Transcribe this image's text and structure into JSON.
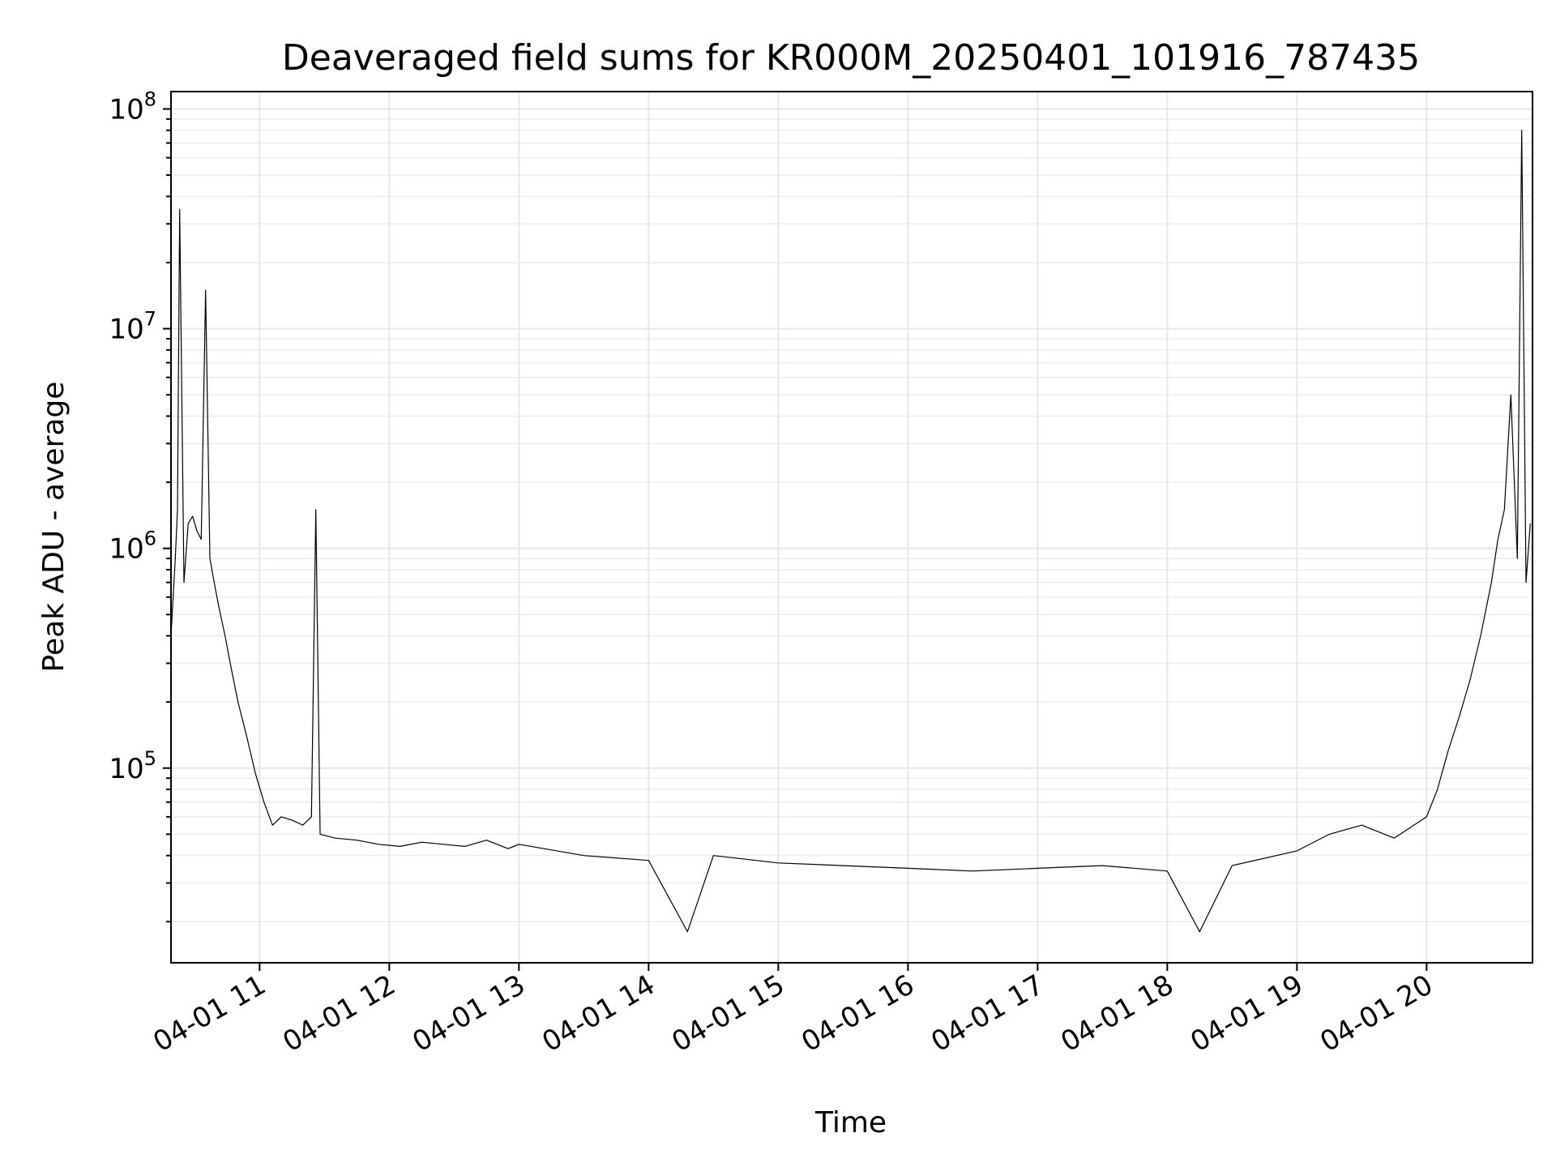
{
  "chart_data": {
    "type": "line",
    "title": "Deaveraged field sums for KR000M_20250401_101916_787435",
    "xlabel": "Time",
    "ylabel": "Peak ADU - average",
    "yscale": "log",
    "ylim": [
      13000,
      120000000
    ],
    "xlim": [
      "2025-04-01 10:19",
      "2025-04-01 20:49"
    ],
    "grid": true,
    "line_color": "#000000",
    "x_ticks": [
      "04-01 11",
      "04-01 12",
      "04-01 13",
      "04-01 14",
      "04-01 15",
      "04-01 16",
      "04-01 17",
      "04-01 18",
      "04-01 19",
      "04-01 20"
    ],
    "y_ticks": [
      {
        "base": "10",
        "exp": "5"
      },
      {
        "base": "10",
        "exp": "6"
      },
      {
        "base": "10",
        "exp": "7"
      },
      {
        "base": "10",
        "exp": "8"
      }
    ],
    "series": [
      {
        "x": [
          "2025-04-01 10:19",
          "2025-04-01 10:21",
          "2025-04-01 10:22",
          "2025-04-01 10:23",
          "2025-04-01 10:25",
          "2025-04-01 10:27",
          "2025-04-01 10:29",
          "2025-04-01 10:31",
          "2025-04-01 10:33",
          "2025-04-01 10:35",
          "2025-04-01 10:37",
          "2025-04-01 10:39",
          "2025-04-01 10:41",
          "2025-04-01 10:44",
          "2025-04-01 10:47",
          "2025-04-01 10:50",
          "2025-04-01 10:54",
          "2025-04-01 10:58",
          "2025-04-01 11:02",
          "2025-04-01 11:06",
          "2025-04-01 11:10",
          "2025-04-01 11:15",
          "2025-04-01 11:20",
          "2025-04-01 11:24",
          "2025-04-01 11:26",
          "2025-04-01 11:28",
          "2025-04-01 11:35",
          "2025-04-01 11:45",
          "2025-04-01 11:55",
          "2025-04-01 12:05",
          "2025-04-01 12:15",
          "2025-04-01 12:25",
          "2025-04-01 12:35",
          "2025-04-01 12:45",
          "2025-04-01 12:55",
          "2025-04-01 13:00",
          "2025-04-01 13:30",
          "2025-04-01 14:00",
          "2025-04-01 14:18",
          "2025-04-01 14:30",
          "2025-04-01 15:00",
          "2025-04-01 15:30",
          "2025-04-01 16:00",
          "2025-04-01 16:30",
          "2025-04-01 17:00",
          "2025-04-01 17:30",
          "2025-04-01 18:00",
          "2025-04-01 18:15",
          "2025-04-01 18:30",
          "2025-04-01 19:00",
          "2025-04-01 19:15",
          "2025-04-01 19:30",
          "2025-04-01 19:45",
          "2025-04-01 20:00",
          "2025-04-01 20:05",
          "2025-04-01 20:10",
          "2025-04-01 20:15",
          "2025-04-01 20:20",
          "2025-04-01 20:25",
          "2025-04-01 20:30",
          "2025-04-01 20:33",
          "2025-04-01 20:36",
          "2025-04-01 20:39",
          "2025-04-01 20:42",
          "2025-04-01 20:44",
          "2025-04-01 20:46",
          "2025-04-01 20:48"
        ],
        "y": [
          400000,
          900000,
          1500000,
          35000000,
          700000,
          1300000,
          1400000,
          1200000,
          1100000,
          15000000,
          900000,
          700000,
          550000,
          400000,
          280000,
          200000,
          140000,
          95000,
          70000,
          55000,
          60000,
          58000,
          55000,
          60000,
          1500000,
          50000,
          48000,
          47000,
          45000,
          44000,
          46000,
          45000,
          44000,
          47000,
          43000,
          45000,
          40000,
          38000,
          18000,
          40000,
          37000,
          36000,
          35000,
          34000,
          35000,
          36000,
          34000,
          18000,
          36000,
          42000,
          50000,
          55000,
          48000,
          60000,
          80000,
          120000,
          170000,
          250000,
          400000,
          700000,
          1100000,
          1500000,
          5000000,
          900000,
          80000000,
          700000,
          1300000
        ]
      }
    ]
  }
}
